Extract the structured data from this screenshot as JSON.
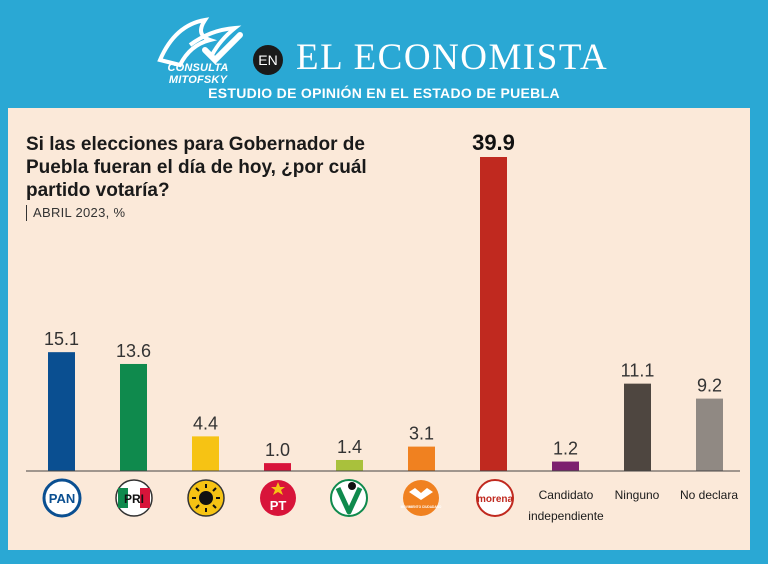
{
  "header": {
    "brand": "CONSULTA MITOFSKY",
    "en_badge": "EN",
    "publication": "EL ECONOMISTA",
    "subtitle": "ESTUDIO DE OPINIÓN EN EL ESTADO DE PUEBLA"
  },
  "question": "Si las elecciones para Gobernador de Puebla fueran el día de hoy, ¿por cuál partido votaría?",
  "meta": "ABRIL 2023, %",
  "colors": {
    "header_bg": "#2aa8d4",
    "panel_bg": "#fbe9d9"
  },
  "chart_data": {
    "type": "bar",
    "title": "Si las elecciones para Gobernador de Puebla fueran el día de hoy, ¿por cuál partido votaría?",
    "xlabel": "",
    "ylabel": "%",
    "ylim": [
      0,
      40
    ],
    "categories": [
      "PAN",
      "PRI",
      "PRD",
      "PT",
      "PVEM",
      "MC",
      "morena",
      "Candidato independiente",
      "Ninguno",
      "No declara"
    ],
    "values": [
      15.1,
      13.6,
      4.4,
      1.0,
      1.4,
      3.1,
      39.9,
      1.2,
      11.1,
      9.2
    ],
    "value_labels": [
      "15.1",
      "13.6",
      "4.4",
      "1.0",
      "1.4",
      "3.1",
      "39.9",
      "1.2",
      "11.1",
      "9.2"
    ],
    "bar_colors": [
      "#0a4f91",
      "#0f8a4d",
      "#f6c314",
      "#d8143a",
      "#a9c13c",
      "#f08120",
      "#c0291f",
      "#7d1f6f",
      "#4e4640",
      "#908983"
    ],
    "category_labels": {
      "pan_logo": "PAN",
      "pri_logo": "PRI",
      "pt_logo": "PT",
      "mc_logo": "MOVIMIENTO CIUDADANO",
      "morena_logo": "morena",
      "independiente_line1": "Candidato",
      "independiente_line2": "independiente",
      "ninguno": "Ninguno",
      "no_declara": "No declara"
    }
  }
}
